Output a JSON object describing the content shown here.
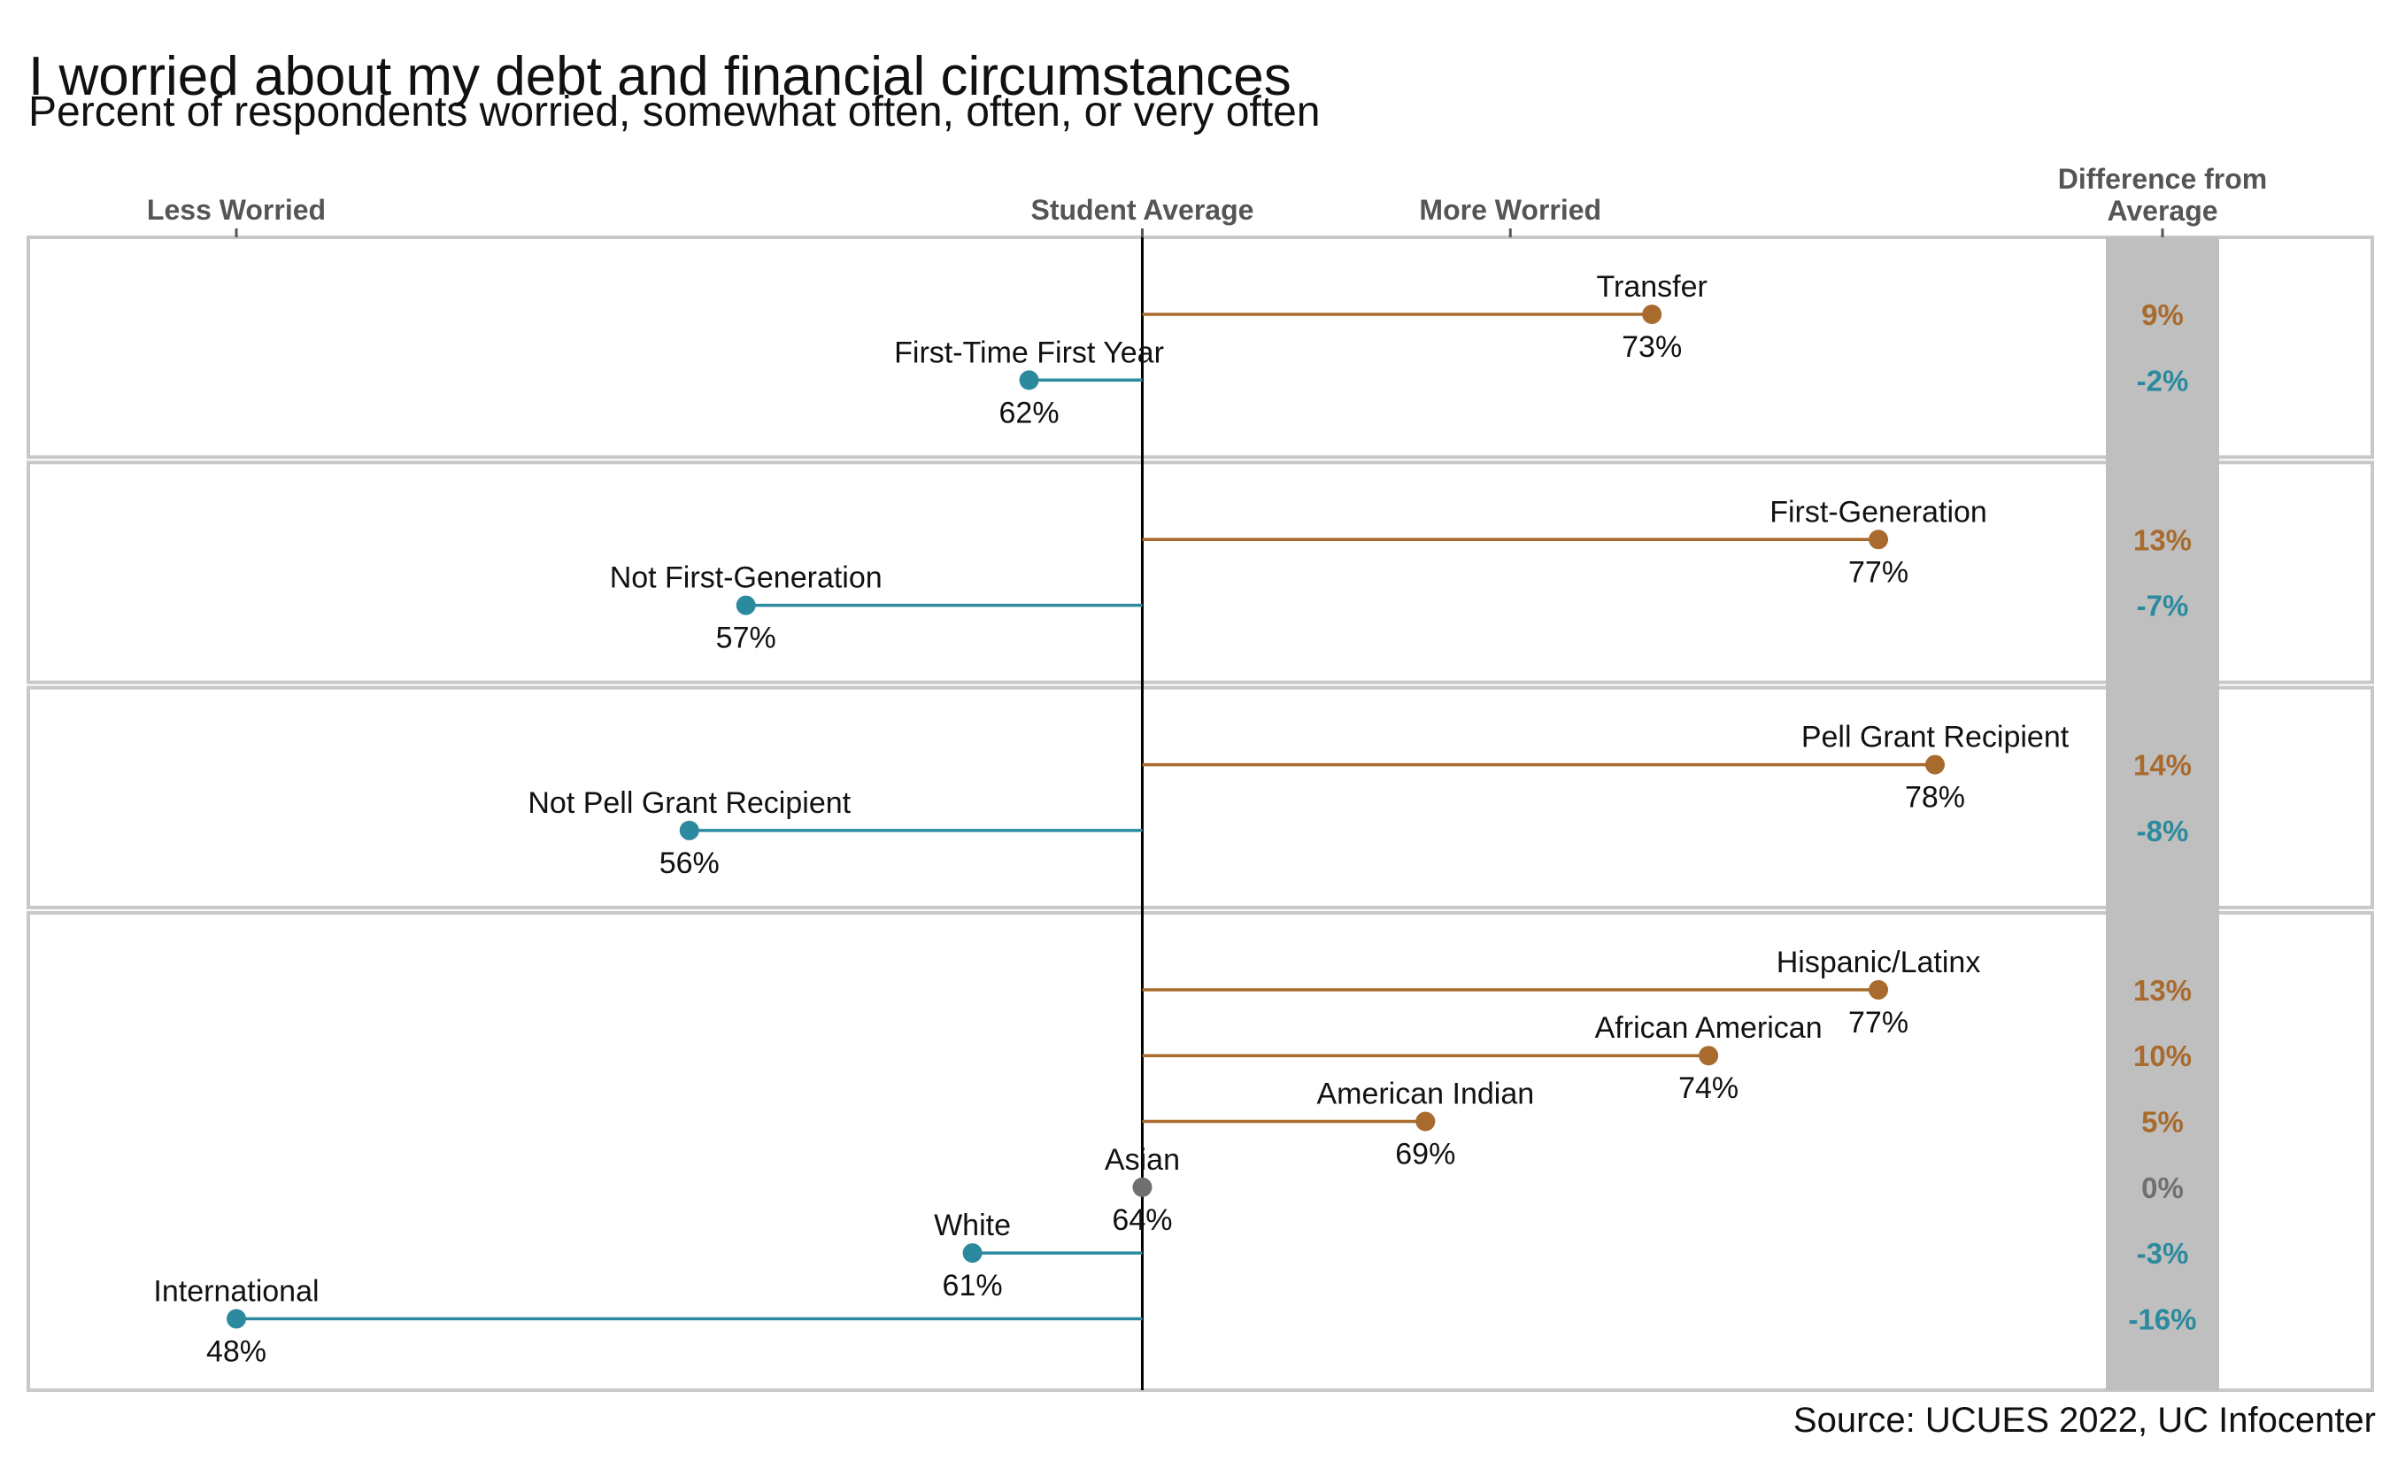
{
  "title": "I worried about my debt and financial circumstances",
  "subtitle": "Percent of respondents worried, somewhat often, often, or very often",
  "source": "Source: UCUES 2022, UC Infocenter",
  "colors": {
    "above": "#A86B2D",
    "below": "#2C8A9E",
    "neutral": "#707070",
    "diff_column_bg": "#BFBFBF",
    "panel_border": "#C8C8C8",
    "header_text": "#555555"
  },
  "chart_data": {
    "type": "lollipop",
    "x_axis": {
      "min": 48,
      "max": 78,
      "reference_value": 64,
      "top_labels": [
        {
          "label": "Less Worried",
          "x": 48
        },
        {
          "label": "Student Average",
          "x": 64
        },
        {
          "label": "More Worried",
          "x": 70.5
        }
      ]
    },
    "difference_header": [
      "Difference from",
      "Average"
    ],
    "groups": [
      {
        "items": [
          {
            "label": "Transfer",
            "value": 73,
            "value_label": "73%",
            "diff": 9,
            "diff_label": "9%"
          },
          {
            "label": "First-Time First Year",
            "value": 62,
            "value_label": "62%",
            "diff": -2,
            "diff_label": "-2%"
          }
        ]
      },
      {
        "items": [
          {
            "label": "First-Generation",
            "value": 77,
            "value_label": "77%",
            "diff": 13,
            "diff_label": "13%"
          },
          {
            "label": "Not First-Generation",
            "value": 57,
            "value_label": "57%",
            "diff": -7,
            "diff_label": "-7%"
          }
        ]
      },
      {
        "items": [
          {
            "label": "Pell Grant Recipient",
            "value": 78,
            "value_label": "78%",
            "diff": 14,
            "diff_label": "14%"
          },
          {
            "label": "Not Pell Grant Recipient",
            "value": 56,
            "value_label": "56%",
            "diff": -8,
            "diff_label": "-8%"
          }
        ]
      },
      {
        "items": [
          {
            "label": "Hispanic/Latinx",
            "value": 77,
            "value_label": "77%",
            "diff": 13,
            "diff_label": "13%"
          },
          {
            "label": "African American",
            "value": 74,
            "value_label": "74%",
            "diff": 10,
            "diff_label": "10%"
          },
          {
            "label": "American Indian",
            "value": 69,
            "value_label": "69%",
            "diff": 5,
            "diff_label": "5%"
          },
          {
            "label": "Asian",
            "value": 64,
            "value_label": "64%",
            "diff": 0,
            "diff_label": "0%"
          },
          {
            "label": "White",
            "value": 61,
            "value_label": "61%",
            "diff": -3,
            "diff_label": "-3%"
          },
          {
            "label": "International",
            "value": 48,
            "value_label": "48%",
            "diff": -16,
            "diff_label": "-16%"
          }
        ]
      }
    ]
  }
}
